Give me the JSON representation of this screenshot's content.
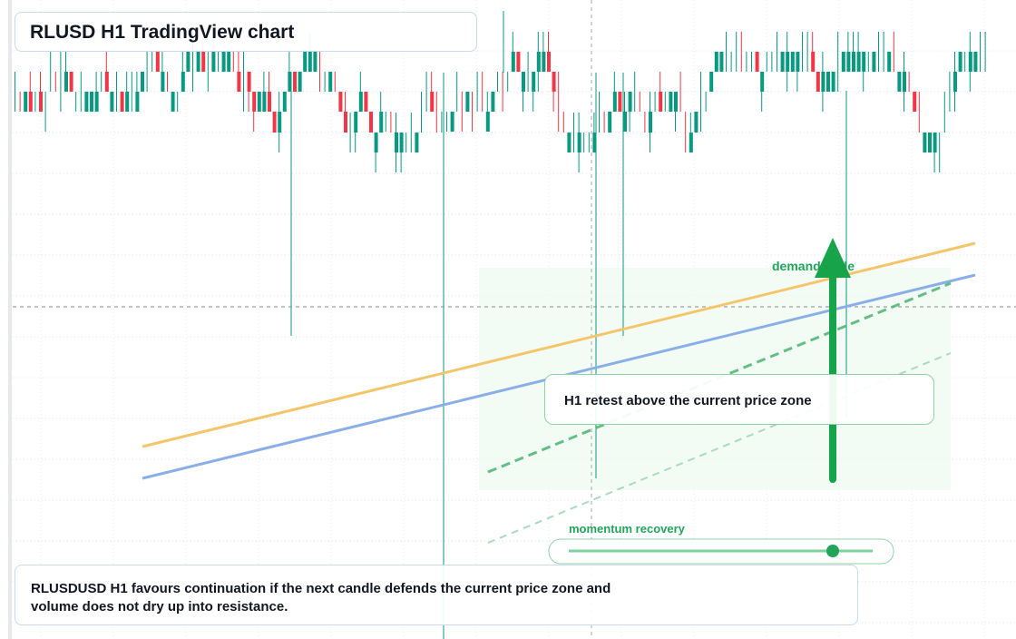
{
  "header": {
    "title": "RLUSD H1 TradingView chart"
  },
  "annotations": {
    "zone_label": "demand node",
    "callout": "H1 retest above the current price zone",
    "momentum": "momentum recovery"
  },
  "footer": {
    "text": "RLUSDUSD H1 favours continuation if the next candle defends the current price zone and volume does not dry up into resistance."
  }
}
